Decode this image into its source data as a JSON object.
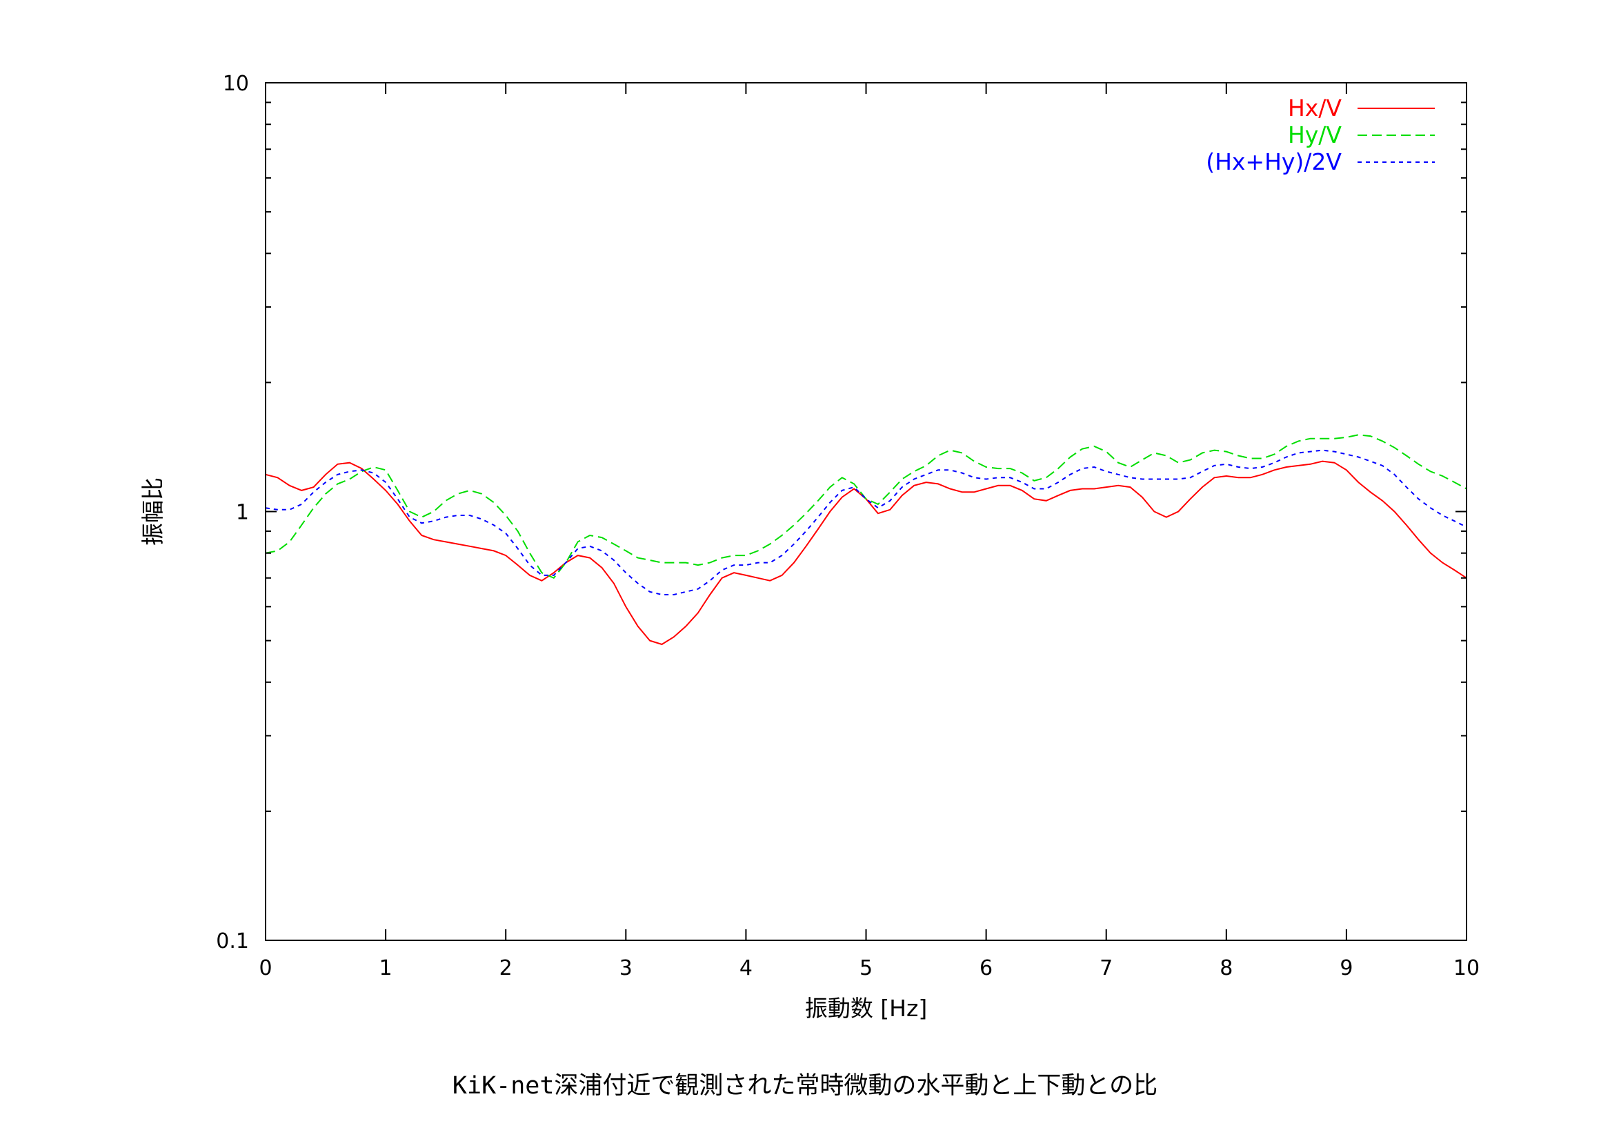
{
  "caption": "KiK-net深浦付近で観測された常時微動の水平動と上下動との比",
  "chart_data": {
    "type": "line",
    "xlabel": "振動数 [Hz]",
    "ylabel": "振幅比",
    "xlim": [
      0,
      10
    ],
    "ylim": [
      0.1,
      10
    ],
    "y_scale": "log",
    "grid": false,
    "legend_position": "top-right",
    "x_ticks": [
      0,
      1,
      2,
      3,
      4,
      5,
      6,
      7,
      8,
      9,
      10
    ],
    "x_tick_labels": [
      "0",
      "1",
      "2",
      "3",
      "4",
      "5",
      "6",
      "7",
      "8",
      "9",
      "10"
    ],
    "y_ticks": [
      0.1,
      1,
      10
    ],
    "y_tick_labels": [
      "0.1",
      "1",
      "10"
    ],
    "series": [
      {
        "name": "Hx/V",
        "color": "#ff0000",
        "dash": "solid",
        "x": [
          0,
          0.1,
          0.2,
          0.3,
          0.4,
          0.5,
          0.6,
          0.7,
          0.8,
          0.9,
          1.0,
          1.1,
          1.2,
          1.3,
          1.4,
          1.5,
          1.6,
          1.7,
          1.8,
          1.9,
          2.0,
          2.1,
          2.2,
          2.3,
          2.4,
          2.5,
          2.6,
          2.7,
          2.8,
          2.9,
          3.0,
          3.1,
          3.2,
          3.3,
          3.4,
          3.5,
          3.6,
          3.7,
          3.8,
          3.9,
          4.0,
          4.1,
          4.2,
          4.3,
          4.4,
          4.5,
          4.6,
          4.7,
          4.8,
          4.9,
          5.0,
          5.1,
          5.2,
          5.3,
          5.4,
          5.5,
          5.6,
          5.7,
          5.8,
          5.9,
          6.0,
          6.1,
          6.2,
          6.3,
          6.4,
          6.5,
          6.6,
          6.7,
          6.8,
          6.9,
          7.0,
          7.1,
          7.2,
          7.3,
          7.4,
          7.5,
          7.6,
          7.7,
          7.8,
          7.9,
          8.0,
          8.1,
          8.2,
          8.3,
          8.4,
          8.5,
          8.6,
          8.7,
          8.8,
          8.9,
          9.0,
          9.1,
          9.2,
          9.3,
          9.4,
          9.5,
          9.6,
          9.7,
          9.8,
          9.9,
          10.0
        ],
        "values": [
          1.22,
          1.2,
          1.15,
          1.12,
          1.14,
          1.22,
          1.29,
          1.3,
          1.26,
          1.19,
          1.12,
          1.04,
          0.95,
          0.88,
          0.86,
          0.85,
          0.84,
          0.83,
          0.82,
          0.81,
          0.79,
          0.75,
          0.71,
          0.69,
          0.72,
          0.76,
          0.79,
          0.78,
          0.74,
          0.68,
          0.6,
          0.54,
          0.5,
          0.49,
          0.51,
          0.54,
          0.58,
          0.64,
          0.7,
          0.72,
          0.71,
          0.7,
          0.69,
          0.71,
          0.76,
          0.83,
          0.91,
          1.0,
          1.08,
          1.13,
          1.07,
          0.99,
          1.01,
          1.09,
          1.15,
          1.17,
          1.16,
          1.13,
          1.11,
          1.11,
          1.13,
          1.15,
          1.15,
          1.12,
          1.07,
          1.06,
          1.09,
          1.12,
          1.13,
          1.13,
          1.14,
          1.15,
          1.14,
          1.08,
          1.0,
          0.97,
          1.0,
          1.07,
          1.14,
          1.2,
          1.21,
          1.2,
          1.2,
          1.22,
          1.25,
          1.27,
          1.28,
          1.29,
          1.31,
          1.3,
          1.25,
          1.17,
          1.11,
          1.06,
          1.0,
          0.93,
          0.86,
          0.8,
          0.76,
          0.73,
          0.7
        ]
      },
      {
        "name": "Hy/V",
        "color": "#00dd00",
        "dash": "long",
        "x": [
          0,
          0.1,
          0.2,
          0.3,
          0.4,
          0.5,
          0.6,
          0.7,
          0.8,
          0.9,
          1.0,
          1.1,
          1.2,
          1.3,
          1.4,
          1.5,
          1.6,
          1.7,
          1.8,
          1.9,
          2.0,
          2.1,
          2.2,
          2.3,
          2.4,
          2.5,
          2.6,
          2.7,
          2.8,
          2.9,
          3.0,
          3.1,
          3.2,
          3.3,
          3.4,
          3.5,
          3.6,
          3.7,
          3.8,
          3.9,
          4.0,
          4.1,
          4.2,
          4.3,
          4.4,
          4.5,
          4.6,
          4.7,
          4.8,
          4.9,
          5.0,
          5.1,
          5.2,
          5.3,
          5.4,
          5.5,
          5.6,
          5.7,
          5.8,
          5.9,
          6.0,
          6.1,
          6.2,
          6.3,
          6.4,
          6.5,
          6.6,
          6.7,
          6.8,
          6.9,
          7.0,
          7.1,
          7.2,
          7.3,
          7.4,
          7.5,
          7.6,
          7.7,
          7.8,
          7.9,
          8.0,
          8.1,
          8.2,
          8.3,
          8.4,
          8.5,
          8.6,
          8.7,
          8.8,
          8.9,
          9.0,
          9.1,
          9.2,
          9.3,
          9.4,
          9.5,
          9.6,
          9.7,
          9.8,
          9.9,
          10.0
        ],
        "values": [
          0.8,
          0.81,
          0.85,
          0.93,
          1.02,
          1.1,
          1.16,
          1.19,
          1.24,
          1.27,
          1.25,
          1.12,
          1.0,
          0.97,
          1.0,
          1.06,
          1.1,
          1.12,
          1.1,
          1.05,
          0.98,
          0.9,
          0.8,
          0.72,
          0.7,
          0.76,
          0.85,
          0.88,
          0.87,
          0.84,
          0.81,
          0.78,
          0.77,
          0.76,
          0.76,
          0.76,
          0.75,
          0.76,
          0.78,
          0.79,
          0.79,
          0.81,
          0.84,
          0.88,
          0.93,
          0.99,
          1.06,
          1.14,
          1.2,
          1.16,
          1.07,
          1.04,
          1.11,
          1.19,
          1.24,
          1.28,
          1.35,
          1.39,
          1.37,
          1.31,
          1.27,
          1.26,
          1.26,
          1.23,
          1.18,
          1.2,
          1.26,
          1.34,
          1.4,
          1.42,
          1.38,
          1.3,
          1.27,
          1.32,
          1.37,
          1.35,
          1.3,
          1.32,
          1.37,
          1.39,
          1.38,
          1.35,
          1.33,
          1.33,
          1.36,
          1.42,
          1.46,
          1.48,
          1.48,
          1.48,
          1.49,
          1.51,
          1.5,
          1.46,
          1.41,
          1.35,
          1.29,
          1.24,
          1.21,
          1.17,
          1.13
        ]
      },
      {
        "name": "(Hx+Hy)/2V",
        "color": "#0000ff",
        "dash": "short",
        "x": [
          0,
          0.1,
          0.2,
          0.3,
          0.4,
          0.5,
          0.6,
          0.7,
          0.8,
          0.9,
          1.0,
          1.1,
          1.2,
          1.3,
          1.4,
          1.5,
          1.6,
          1.7,
          1.8,
          1.9,
          2.0,
          2.1,
          2.2,
          2.3,
          2.4,
          2.5,
          2.6,
          2.7,
          2.8,
          2.9,
          3.0,
          3.1,
          3.2,
          3.3,
          3.4,
          3.5,
          3.6,
          3.7,
          3.8,
          3.9,
          4.0,
          4.1,
          4.2,
          4.3,
          4.4,
          4.5,
          4.6,
          4.7,
          4.8,
          4.9,
          5.0,
          5.1,
          5.2,
          5.3,
          5.4,
          5.5,
          5.6,
          5.7,
          5.8,
          5.9,
          6.0,
          6.1,
          6.2,
          6.3,
          6.4,
          6.5,
          6.6,
          6.7,
          6.8,
          6.9,
          7.0,
          7.1,
          7.2,
          7.3,
          7.4,
          7.5,
          7.6,
          7.7,
          7.8,
          7.9,
          8.0,
          8.1,
          8.2,
          8.3,
          8.4,
          8.5,
          8.6,
          8.7,
          8.8,
          8.9,
          9.0,
          9.1,
          9.2,
          9.3,
          9.4,
          9.5,
          9.6,
          9.7,
          9.8,
          9.9,
          10.0
        ],
        "values": [
          1.02,
          1.01,
          1.01,
          1.04,
          1.11,
          1.17,
          1.22,
          1.24,
          1.25,
          1.23,
          1.17,
          1.07,
          0.97,
          0.94,
          0.95,
          0.97,
          0.98,
          0.98,
          0.96,
          0.93,
          0.89,
          0.82,
          0.75,
          0.71,
          0.71,
          0.76,
          0.82,
          0.83,
          0.81,
          0.77,
          0.72,
          0.68,
          0.65,
          0.64,
          0.64,
          0.65,
          0.66,
          0.69,
          0.73,
          0.75,
          0.75,
          0.76,
          0.76,
          0.79,
          0.84,
          0.9,
          0.97,
          1.05,
          1.12,
          1.14,
          1.07,
          1.02,
          1.06,
          1.14,
          1.19,
          1.22,
          1.25,
          1.25,
          1.23,
          1.2,
          1.19,
          1.2,
          1.2,
          1.17,
          1.13,
          1.13,
          1.17,
          1.22,
          1.26,
          1.27,
          1.24,
          1.22,
          1.2,
          1.19,
          1.19,
          1.19,
          1.19,
          1.2,
          1.24,
          1.28,
          1.29,
          1.27,
          1.26,
          1.27,
          1.3,
          1.34,
          1.37,
          1.38,
          1.39,
          1.38,
          1.36,
          1.34,
          1.31,
          1.28,
          1.22,
          1.14,
          1.07,
          1.02,
          0.98,
          0.95,
          0.92
        ]
      }
    ]
  }
}
